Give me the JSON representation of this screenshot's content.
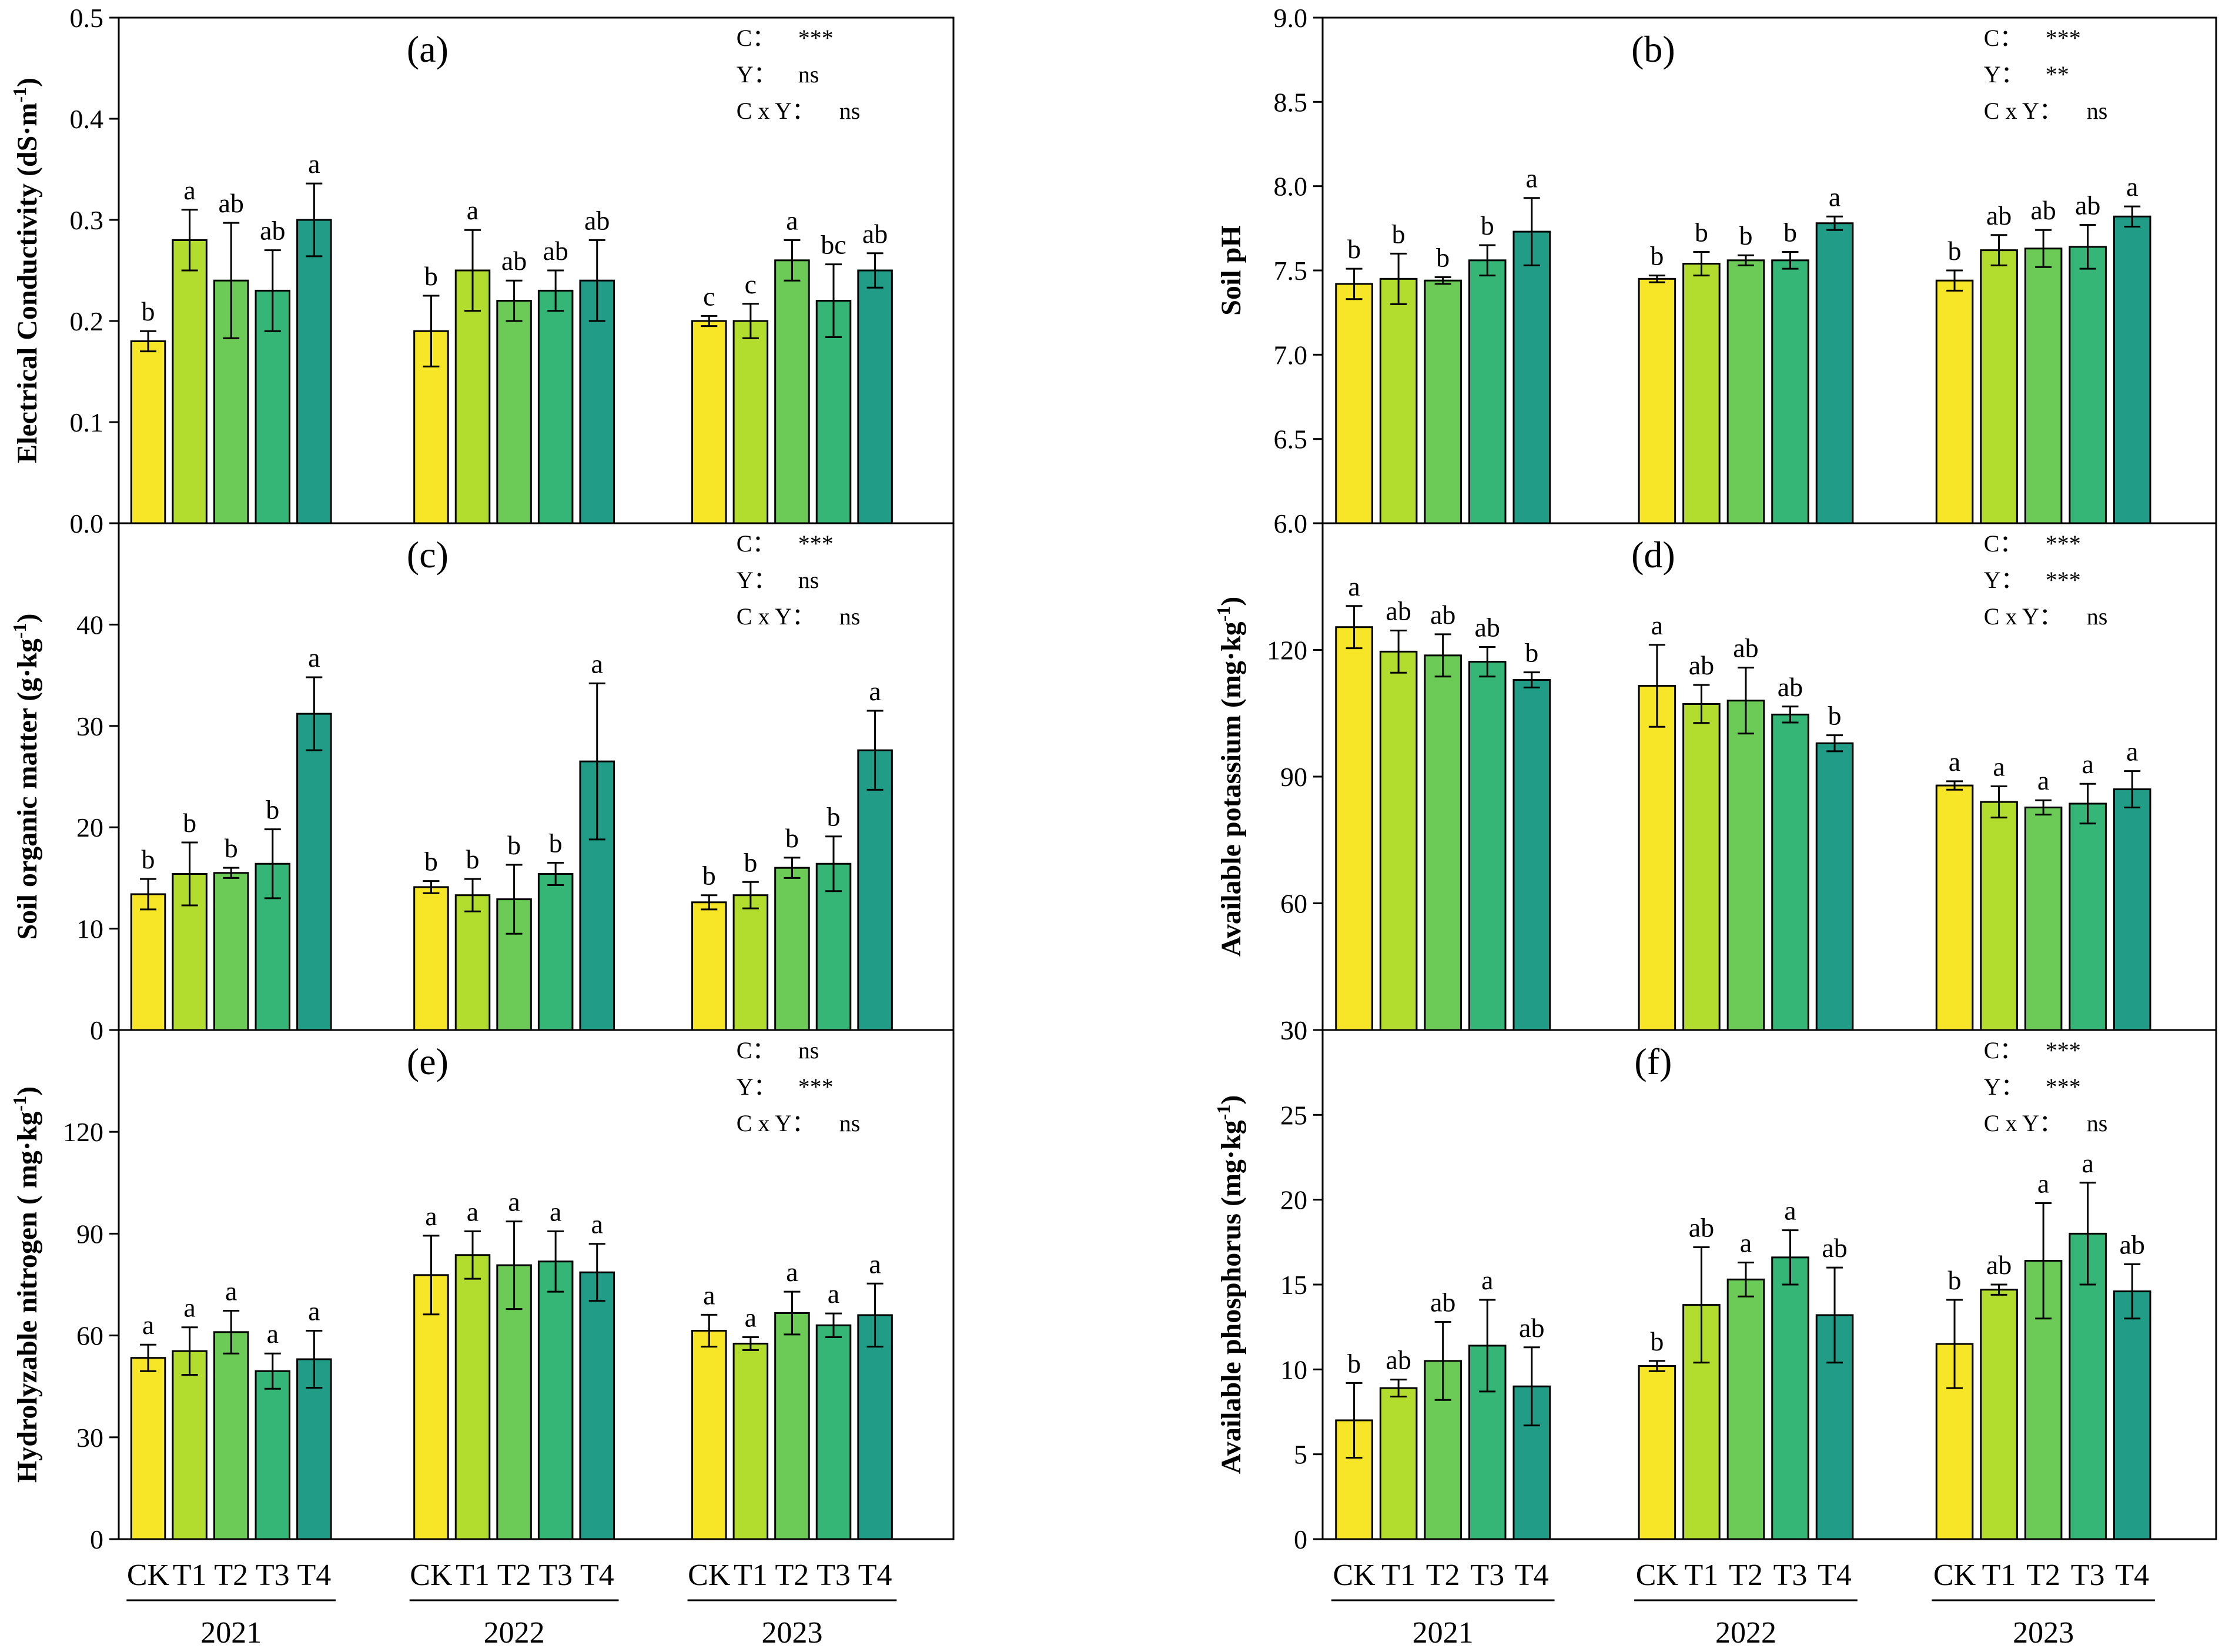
{
  "colors": {
    "CK": "#f7e628",
    "T1": "#b2dc2e",
    "T2": "#6ccb56",
    "T3": "#36b676",
    "T4": "#219c86"
  },
  "chart_data": [
    {
      "id": "a",
      "type": "bar",
      "panel_label": "(a)",
      "ylabel": "Electrical Conductivity (dS·m",
      "ylabel_sup": "-1",
      "ylabel_close": ")",
      "ylim": [
        0,
        0.5
      ],
      "yticks": [
        "0.0",
        "0.1",
        "0.2",
        "0.3",
        "0.4",
        "0.5"
      ],
      "treatments": [
        "CK",
        "T1",
        "T2",
        "T3",
        "T4"
      ],
      "years": [
        "2021",
        "2022",
        "2023"
      ],
      "values": [
        [
          0.18,
          0.28,
          0.24,
          0.23,
          0.3
        ],
        [
          0.19,
          0.25,
          0.22,
          0.23,
          0.24
        ],
        [
          0.2,
          0.2,
          0.26,
          0.22,
          0.25
        ]
      ],
      "errors": [
        [
          0.01,
          0.03,
          0.057,
          0.04,
          0.036
        ],
        [
          0.035,
          0.04,
          0.02,
          0.02,
          0.04
        ],
        [
          0.005,
          0.017,
          0.02,
          0.036,
          0.017
        ]
      ],
      "letters": [
        [
          "b",
          "a",
          "ab",
          "ab",
          "a"
        ],
        [
          "b",
          "a",
          "ab",
          "ab",
          "ab"
        ],
        [
          "c",
          "c",
          "a",
          "bc",
          "ab"
        ]
      ],
      "significance": [
        {
          "label": "C：",
          "value": "***"
        },
        {
          "label": "Y：",
          "value": "ns"
        },
        {
          "label": "C x Y：",
          "value": "ns"
        }
      ]
    },
    {
      "id": "b",
      "type": "bar",
      "panel_label": "(b)",
      "ylabel": "Soil pH",
      "ylabel_sup": "",
      "ylabel_close": "",
      "ylim": [
        6.0,
        9.0
      ],
      "yticks": [
        "6.0",
        "6.5",
        "7.0",
        "7.5",
        "8.0",
        "8.5",
        "9.0"
      ],
      "treatments": [
        "CK",
        "T1",
        "T2",
        "T3",
        "T4"
      ],
      "years": [
        "2021",
        "2022",
        "2023"
      ],
      "values": [
        [
          7.42,
          7.45,
          7.44,
          7.56,
          7.73
        ],
        [
          7.45,
          7.54,
          7.56,
          7.56,
          7.78
        ],
        [
          7.44,
          7.62,
          7.63,
          7.64,
          7.82
        ]
      ],
      "errors": [
        [
          0.09,
          0.15,
          0.02,
          0.09,
          0.2
        ],
        [
          0.02,
          0.07,
          0.03,
          0.05,
          0.04
        ],
        [
          0.06,
          0.09,
          0.11,
          0.13,
          0.06
        ]
      ],
      "letters": [
        [
          "b",
          "b",
          "b",
          "b",
          "a"
        ],
        [
          "b",
          "b",
          "b",
          "b",
          "a"
        ],
        [
          "b",
          "ab",
          "ab",
          "ab",
          "a"
        ]
      ],
      "significance": [
        {
          "label": "C：",
          "value": "***"
        },
        {
          "label": "Y：",
          "value": "**"
        },
        {
          "label": "C x Y：",
          "value": "ns"
        }
      ]
    },
    {
      "id": "c",
      "type": "bar",
      "panel_label": "(c)",
      "ylabel": "Soil  organic matter (g·kg",
      "ylabel_sup": "-1",
      "ylabel_close": ")",
      "ylim": [
        0,
        50
      ],
      "yticks": [
        "0",
        "10",
        "20",
        "30",
        "40"
      ],
      "treatments": [
        "CK",
        "T1",
        "T2",
        "T3",
        "T4"
      ],
      "years": [
        "2021",
        "2022",
        "2023"
      ],
      "values": [
        [
          13.4,
          15.4,
          15.5,
          16.4,
          31.2
        ],
        [
          14.1,
          13.3,
          12.9,
          15.4,
          26.5
        ],
        [
          12.6,
          13.3,
          16.0,
          16.4,
          27.6
        ]
      ],
      "errors": [
        [
          1.5,
          3.1,
          0.5,
          3.4,
          3.6
        ],
        [
          0.6,
          1.6,
          3.4,
          1.1,
          7.7
        ],
        [
          0.7,
          1.3,
          1.0,
          2.7,
          3.9
        ]
      ],
      "letters": [
        [
          "b",
          "b",
          "b",
          "b",
          "a"
        ],
        [
          "b",
          "b",
          "b",
          "b",
          "a"
        ],
        [
          "b",
          "b",
          "b",
          "b",
          "a"
        ]
      ],
      "significance": [
        {
          "label": "C：",
          "value": "***"
        },
        {
          "label": "Y：",
          "value": "ns"
        },
        {
          "label": "C x Y：",
          "value": "ns"
        }
      ]
    },
    {
      "id": "d",
      "type": "bar",
      "panel_label": "(d)",
      "ylabel": "Available potassium (mg·kg",
      "ylabel_sup": "-1",
      "ylabel_close": ")",
      "ylim": [
        30,
        150
      ],
      "yticks": [
        "30",
        "60",
        "90",
        "120"
      ],
      "treatments": [
        "CK",
        "T1",
        "T2",
        "T3",
        "T4"
      ],
      "years": [
        "2021",
        "2022",
        "2023"
      ],
      "values": [
        [
          125.4,
          119.6,
          118.7,
          117.2,
          112.9
        ],
        [
          111.5,
          107.2,
          108.0,
          104.7,
          97.9
        ],
        [
          87.9,
          84.0,
          82.7,
          83.6,
          87.0
        ]
      ],
      "errors": [
        [
          5.0,
          5.0,
          5.0,
          3.5,
          1.8
        ],
        [
          9.7,
          4.5,
          7.8,
          1.9,
          1.9
        ],
        [
          1.0,
          3.7,
          1.7,
          4.7,
          4.3
        ]
      ],
      "letters": [
        [
          "a",
          "ab",
          "ab",
          "ab",
          "b"
        ],
        [
          "a",
          "ab",
          "ab",
          "ab",
          "b"
        ],
        [
          "a",
          "a",
          "a",
          "a",
          "a"
        ]
      ],
      "significance": [
        {
          "label": "C：",
          "value": "***"
        },
        {
          "label": "Y：",
          "value": "***"
        },
        {
          "label": "C x Y：",
          "value": "ns"
        }
      ]
    },
    {
      "id": "e",
      "type": "bar",
      "panel_label": "(e)",
      "ylabel": "Hydrolyzable nitrogen ( mg·kg",
      "ylabel_sup": "-1",
      "ylabel_close": ")",
      "ylim": [
        0,
        150
      ],
      "yticks": [
        "0",
        "30",
        "60",
        "90",
        "120"
      ],
      "treatments": [
        "CK",
        "T1",
        "T2",
        "T3",
        "T4"
      ],
      "years": [
        "2021",
        "2022",
        "2023"
      ],
      "values": [
        [
          53.4,
          55.4,
          61.0,
          49.5,
          53.0
        ],
        [
          77.8,
          83.7,
          80.7,
          81.8,
          78.6
        ],
        [
          61.4,
          57.6,
          66.6,
          63.0,
          66.0
        ]
      ],
      "errors": [
        [
          3.9,
          7.0,
          6.3,
          5.2,
          8.4
        ],
        [
          11.6,
          7.0,
          12.9,
          8.9,
          8.4
        ],
        [
          4.7,
          1.9,
          6.3,
          3.5,
          9.3
        ]
      ],
      "letters": [
        [
          "a",
          "a",
          "a",
          "a",
          "a"
        ],
        [
          "a",
          "a",
          "a",
          "a",
          "a"
        ],
        [
          "a",
          "a",
          "a",
          "a",
          "a"
        ]
      ],
      "significance": [
        {
          "label": "C：",
          "value": "ns"
        },
        {
          "label": "Y：",
          "value": "***"
        },
        {
          "label": "C x Y：",
          "value": "ns"
        }
      ]
    },
    {
      "id": "f",
      "type": "bar",
      "panel_label": "(f)",
      "ylabel": "Available phosphorus (mg·kg",
      "ylabel_sup": "-1",
      "ylabel_close": ")",
      "ylim": [
        0,
        30
      ],
      "yticks": [
        "0",
        "5",
        "10",
        "15",
        "20",
        "25",
        "30"
      ],
      "treatments": [
        "CK",
        "T1",
        "T2",
        "T3",
        "T4"
      ],
      "years": [
        "2021",
        "2022",
        "2023"
      ],
      "values": [
        [
          7.0,
          8.9,
          10.5,
          11.4,
          9.0
        ],
        [
          10.2,
          13.8,
          15.3,
          16.6,
          13.2
        ],
        [
          11.5,
          14.7,
          16.4,
          18.0,
          14.6
        ]
      ],
      "errors": [
        [
          2.2,
          0.5,
          2.3,
          2.7,
          2.3
        ],
        [
          0.3,
          3.4,
          1.0,
          1.6,
          2.8
        ],
        [
          2.6,
          0.3,
          3.4,
          3.0,
          1.6
        ]
      ],
      "letters": [
        [
          "b",
          "ab",
          "ab",
          "a",
          "ab"
        ],
        [
          "b",
          "ab",
          "a",
          "a",
          "ab"
        ],
        [
          "b",
          "ab",
          "a",
          "a",
          "ab"
        ]
      ],
      "significance": [
        {
          "label": "C：",
          "value": "***"
        },
        {
          "label": "Y：",
          "value": "***"
        },
        {
          "label": "C x Y：",
          "value": "ns"
        }
      ]
    }
  ]
}
